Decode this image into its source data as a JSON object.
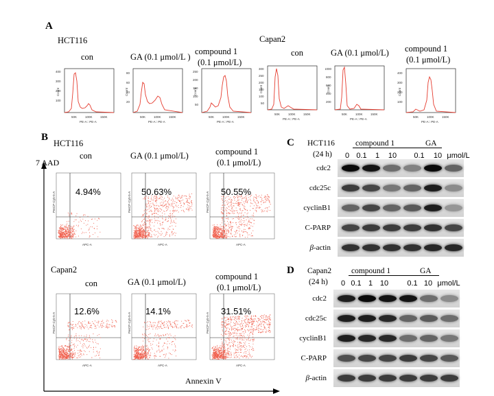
{
  "panelA": {
    "letter": "A",
    "cell1": "HCT116",
    "cell2": "Capan2",
    "labels": [
      "con",
      "GA (0.1 μmol/L )",
      "compound 1",
      "(0.1 μmol/L)",
      "con",
      "GA (0.1 μmol/L)",
      "compound 1",
      "(0.1 μmol/L)"
    ],
    "ylabel": "Count",
    "xlabel": "PE-A:: PE-A",
    "xticks": [
      "50K",
      "100K",
      "150K"
    ],
    "yticks_hct": [
      [
        "400",
        "300",
        "200",
        "100"
      ],
      [
        "80",
        "60",
        "40",
        "20"
      ],
      [
        "250",
        "200",
        "150",
        "100",
        "50"
      ]
    ],
    "yticks_capan": [
      [
        "300",
        "250",
        "200",
        "150",
        "100",
        "50"
      ],
      [
        "1000",
        "800",
        "600",
        "400",
        "200"
      ],
      [
        "400",
        "300",
        "200",
        "100"
      ]
    ]
  },
  "panelB": {
    "letter": "B",
    "cell1": "HCT116",
    "cell2": "Capan2",
    "yaxis": "7 AAD",
    "xaxis": "Annexin V",
    "con": "con",
    "ga": "GA (0.1 μmol/L)",
    "cpd": "compound 1",
    "cpd_conc": "(0.1 μmol/L)",
    "pct_hct": [
      "4.94%",
      "50.63%",
      "50.55%"
    ],
    "pct_capan": [
      "12.6%",
      "14.1%",
      "31.51%"
    ],
    "plot_xlabel": "APC-A",
    "plot_ylabel": "PerCP-Cy5-5-A"
  },
  "panelC": {
    "letter": "C",
    "cell": "HCT116",
    "time": "(24 h)",
    "group1": "compound 1",
    "group2": "GA",
    "doses": [
      "0",
      "0.1",
      "1",
      "10",
      "0.1",
      "10"
    ],
    "unit": "μmol/L",
    "rows": [
      "cdc2",
      "cdc25c",
      "cyclinB1",
      "C-PARP",
      "β-actin"
    ]
  },
  "panelD": {
    "letter": "D",
    "cell": "Capan2",
    "time": "(24 h)",
    "group1": "compound 1",
    "group2": "GA",
    "doses": [
      "0",
      "0.1",
      "1",
      "10",
      "0.1",
      "10"
    ],
    "unit": "μmol/L",
    "rows": [
      "cdc2",
      "cdc25c",
      "cyclinB1",
      "C-PARP",
      "β-actin"
    ]
  }
}
